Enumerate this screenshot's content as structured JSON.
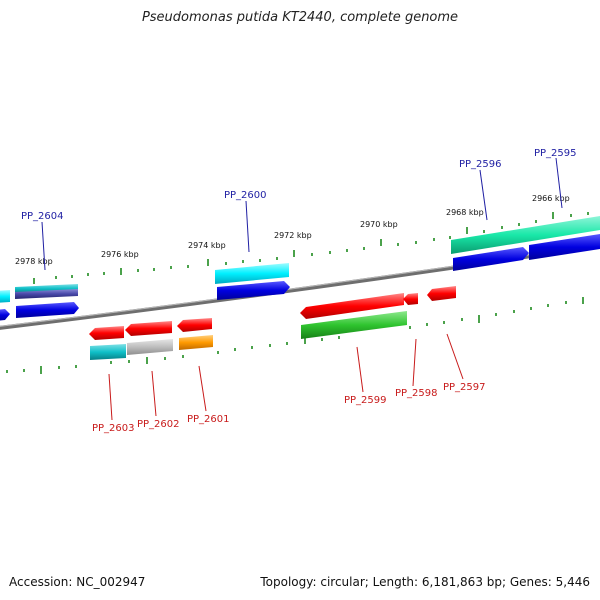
{
  "title": "Pseudomonas putida KT2440, complete genome",
  "footer": {
    "accession": "Accession: NC_002947",
    "summary": "Topology: circular; Length: 6,181,863 bp; Genes: 5,446"
  },
  "colors": {
    "backbone": "#7a7a7a",
    "tick": "#1e8a1e",
    "label_forward": "#1f1fa3",
    "label_reverse": "#c81b1b"
  },
  "kbp_labels": [
    "2978 kbp",
    "2976 kbp",
    "2974 kbp",
    "2972 kbp",
    "2970 kbp",
    "2968 kbp",
    "2966 kbp"
  ],
  "gene_labels": {
    "forward": [
      "PP_2604",
      "PP_2600",
      "PP_2596",
      "PP_2595"
    ],
    "reverse": [
      "PP_2603",
      "PP_2602",
      "PP_2601",
      "PP_2599",
      "PP_2598",
      "PP_2597"
    ]
  }
}
